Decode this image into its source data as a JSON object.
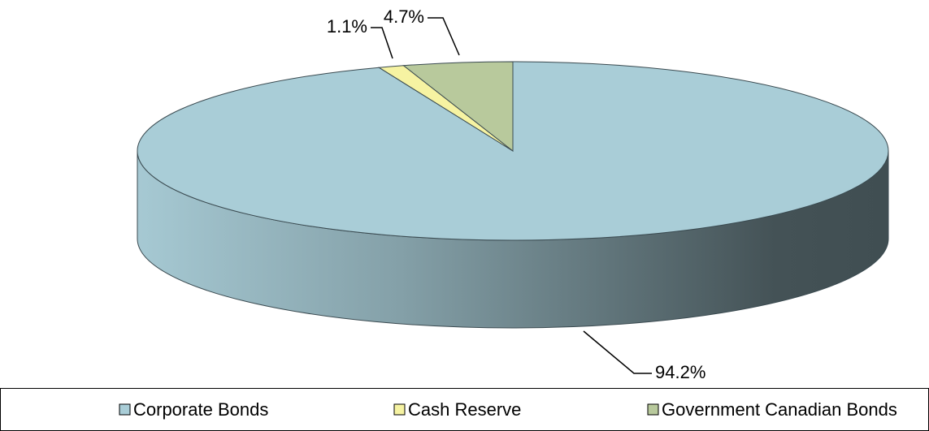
{
  "chart_data": {
    "type": "pie",
    "categories": [
      "Corporate Bonds",
      "Cash Reserve",
      "Government Canadian Bonds"
    ],
    "values": [
      94.2,
      1.1,
      4.7
    ],
    "value_labels": [
      "94.2%",
      "1.1%",
      "4.7%"
    ],
    "colors": [
      "#a9cdd7",
      "#f6f3a2",
      "#b8c99c"
    ],
    "legend": "bottom"
  }
}
